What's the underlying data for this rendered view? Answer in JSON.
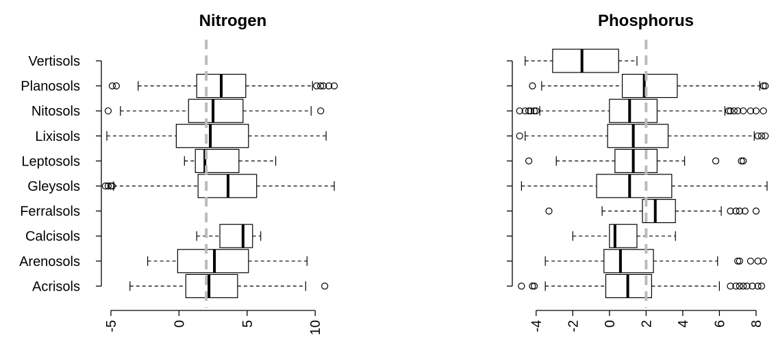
{
  "chart_data": [
    {
      "type": "boxplot",
      "orientation": "horizontal",
      "title": "Nitrogen",
      "categories": [
        "Vertisols",
        "Planosols",
        "Nitosols",
        "Lixisols",
        "Leptosols",
        "Gleysols",
        "Ferralsols",
        "Calcisols",
        "Arenosols",
        "Acrisols"
      ],
      "xlim": [
        -5.7,
        12.0
      ],
      "xticks": [
        -5,
        0,
        5,
        10
      ],
      "xtick_labels": [
        "-5",
        "0",
        "5",
        "10"
      ],
      "reference_line": 2,
      "reference_color": "#bbbbbb",
      "boxes": [
        null,
        {
          "whisker_low": -3.0,
          "q1": 1.3,
          "median": 3.1,
          "q3": 4.9,
          "whisker_high": 9.8,
          "outliers": [
            -4.9,
            -4.6,
            10.1,
            10.4,
            10.6,
            11.0,
            11.4
          ]
        },
        {
          "whisker_low": -4.3,
          "q1": 0.7,
          "median": 2.5,
          "q3": 4.7,
          "whisker_high": 9.7,
          "outliers": [
            -5.2,
            10.4
          ]
        },
        {
          "whisker_low": -5.3,
          "q1": -0.2,
          "median": 2.3,
          "q3": 5.1,
          "whisker_high": 10.8,
          "outliers": []
        },
        {
          "whisker_low": 0.4,
          "q1": 1.2,
          "median": 1.9,
          "q3": 4.4,
          "whisker_high": 7.1,
          "outliers": []
        },
        {
          "whisker_low": -4.8,
          "q1": 1.4,
          "median": 3.6,
          "q3": 5.7,
          "whisker_high": 11.4,
          "outliers": [
            -5.4,
            -5.2,
            -5.0,
            -4.9
          ]
        },
        null,
        {
          "whisker_low": 1.3,
          "q1": 3.0,
          "median": 4.7,
          "q3": 5.4,
          "whisker_high": 6.0,
          "outliers": []
        },
        {
          "whisker_low": -2.3,
          "q1": -0.1,
          "median": 2.6,
          "q3": 5.1,
          "whisker_high": 9.4,
          "outliers": []
        },
        {
          "whisker_low": -3.6,
          "q1": 0.5,
          "median": 2.2,
          "q3": 4.3,
          "whisker_high": 9.3,
          "outliers": [
            10.7
          ]
        }
      ]
    },
    {
      "type": "boxplot",
      "orientation": "horizontal",
      "title": "Phosphorus",
      "categories": [
        "Vertisols",
        "Planosols",
        "Nitosols",
        "Lixisols",
        "Leptosols",
        "Gleysols",
        "Ferralsols",
        "Calcisols",
        "Arenosols",
        "Acrisols"
      ],
      "xlim": [
        -5.3,
        8.9
      ],
      "xticks": [
        -4,
        -2,
        0,
        2,
        4,
        6,
        8
      ],
      "xtick_labels": [
        "-4",
        "-2",
        "0",
        "2",
        "4",
        "6",
        "8"
      ],
      "reference_line": 2,
      "reference_color": "#bbbbbb",
      "boxes": [
        {
          "whisker_low": -4.6,
          "q1": -3.1,
          "median": -1.5,
          "q3": 0.5,
          "whisker_high": 1.5,
          "outliers": []
        },
        {
          "whisker_low": -3.7,
          "q1": 0.7,
          "median": 1.9,
          "q3": 3.7,
          "whisker_high": 8.2,
          "outliers": [
            -4.2,
            8.4,
            8.5
          ]
        },
        {
          "whisker_low": -3.8,
          "q1": 0.0,
          "median": 1.1,
          "q3": 2.6,
          "whisker_high": 6.3,
          "outliers": [
            -4.9,
            -4.6,
            -4.4,
            -4.3,
            -4.1,
            -4.0,
            6.5,
            6.6,
            6.8,
            7.0,
            7.3,
            7.7,
            8.0,
            8.4
          ]
        },
        {
          "whisker_low": -4.6,
          "q1": -0.1,
          "median": 1.3,
          "q3": 3.2,
          "whisker_high": 7.9,
          "outliers": [
            -4.9,
            8.1,
            8.3,
            8.5
          ]
        },
        {
          "whisker_low": -2.9,
          "q1": 0.3,
          "median": 1.3,
          "q3": 2.6,
          "whisker_high": 4.1,
          "outliers": [
            -4.4,
            5.8,
            7.2,
            7.3
          ]
        },
        {
          "whisker_low": -4.8,
          "q1": -0.7,
          "median": 1.1,
          "q3": 3.4,
          "whisker_high": 8.6,
          "outliers": []
        },
        {
          "whisker_low": -0.4,
          "q1": 1.8,
          "median": 2.5,
          "q3": 3.6,
          "whisker_high": 6.1,
          "outliers": [
            -3.3,
            6.6,
            6.9,
            7.1,
            7.4,
            8.0
          ]
        },
        {
          "whisker_low": -2.0,
          "q1": 0.0,
          "median": 0.3,
          "q3": 1.5,
          "whisker_high": 3.6,
          "outliers": []
        },
        {
          "whisker_low": -3.5,
          "q1": -0.3,
          "median": 0.6,
          "q3": 2.4,
          "whisker_high": 5.9,
          "outliers": [
            7.0,
            7.1,
            7.7,
            8.1,
            8.4
          ]
        },
        {
          "whisker_low": -3.5,
          "q1": -0.2,
          "median": 1.0,
          "q3": 2.3,
          "whisker_high": 6.0,
          "outliers": [
            -4.8,
            -4.2,
            -4.1,
            6.6,
            6.9,
            7.1,
            7.3,
            7.5,
            7.8,
            8.1,
            8.3
          ]
        }
      ]
    }
  ]
}
